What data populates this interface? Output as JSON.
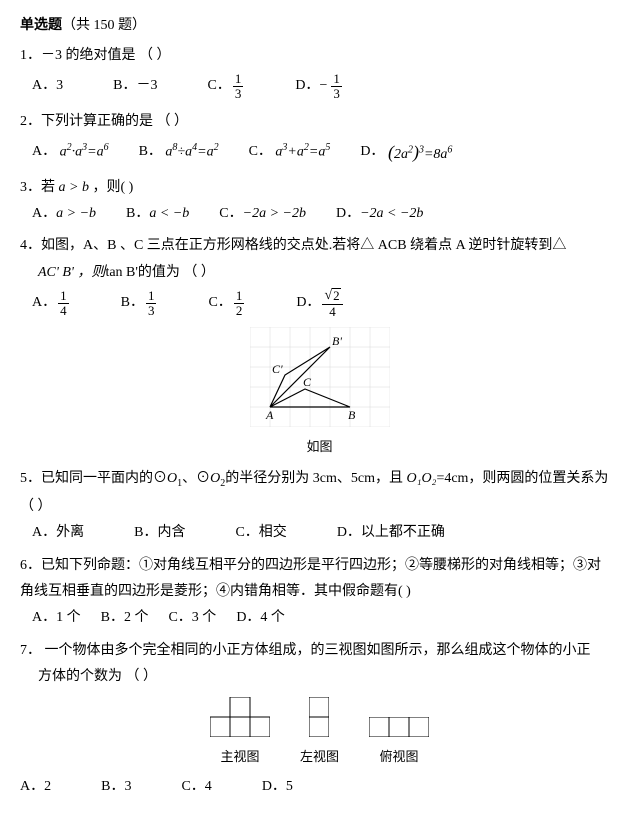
{
  "header": {
    "title_bold": "单选题",
    "title_rest": "（共 150 题）"
  },
  "q1": {
    "text": "1．－3 的绝对值是  （      ）",
    "optA_label": "A．",
    "optA_val": "3",
    "optB_label": "B．",
    "optB_val": "－3",
    "optC_label": "C．",
    "optC_num": "1",
    "optC_den": "3",
    "optD_label": "D．",
    "optD_neg": "−",
    "optD_num": "1",
    "optD_den": "3"
  },
  "q2": {
    "text": "2．下列计算正确的是  （      ）",
    "optA_label": "A．",
    "optB_label": "B．",
    "optC_label": "C．",
    "optD_label": "D．",
    "a": "a",
    "exp2": "2",
    "exp3": "3",
    "exp4": "4",
    "exp5": "5",
    "exp6": "6",
    "exp8": "8",
    "dot": "·",
    "div": "÷",
    "plus": "+",
    "eq": "=",
    "eight": "8",
    "lp": "(",
    "rp": ")",
    "two": "2"
  },
  "q3": {
    "text_pre": "3．若 ",
    "text_cond": "a > b",
    "text_post": " ，则(      )",
    "optA": "A．",
    "optA_val": "a > −b",
    "optB": "B．",
    "optB_val": "a < −b",
    "optC": "C．",
    "optC_val": "−2a > −2b",
    "optD": "D．",
    "optD_val": "−2a < −2b"
  },
  "q4": {
    "text1": "4．如图，A、B 、C 三点在正方形网格线的交点处.若将△ ACB 绕着点 A 逆时针旋转到△",
    "text2_pre": "AC' B' ，则",
    "text2_tan": "tan B'",
    "text2_post": "的值为  （      ）",
    "optA": "A．",
    "optA_num": "1",
    "optA_den": "4",
    "optB": "B．",
    "optB_num": "1",
    "optB_den": "3",
    "optC": "C．",
    "optC_num": "1",
    "optC_den": "2",
    "optD": "D．",
    "optD_sqrt": "2",
    "optD_den": "4",
    "caption": "如图",
    "labels": {
      "A": "A",
      "B": "B",
      "C": "C",
      "Bp": "B'",
      "Cp": "C'"
    },
    "grid_color": "#d8d8d8",
    "line_color": "#000000"
  },
  "q5": {
    "text1_pre": "5．已知同一平面内的⊙",
    "text1_o1": "O",
    "text1_sub1": "1",
    "text1_mid1": "、⊙",
    "text1_o2": "O",
    "text1_sub2": "2",
    "text1_mid2": "的半径分别为 3cm、5cm，且 ",
    "text1_oo": "O₁O₂",
    "text1_post": "=4cm，则两圆的位置关系为",
    "text2": "（      ）",
    "optA": "A．外离",
    "optB": "B．内含",
    "optC": "C．相交",
    "optD": "D．以上都不正确"
  },
  "q6": {
    "text1": "6．已知下列命题：①对角线互相平分的四边形是平行四边形；②等腰梯形的对角线相等；③对",
    "text2": "角线互相垂直的四边形是菱形；④内错角相等．其中假命题有(       )",
    "optA": "A．1 个",
    "optB": "B．2 个",
    "optC": "C．3 个",
    "optD": "D．4 个"
  },
  "q7": {
    "text1": "7． 一个物体由多个完全相同的小正方体组成，的三视图如图所示，那么组成这个物体的小正",
    "text2": "方体的个数为 （    ）",
    "view1_label": "主视图",
    "view2_label": "左视图",
    "view3_label": "俯视图",
    "optA": "A．2",
    "optB": "B．3",
    "optC": "C．4",
    "optD": "D．5",
    "box_stroke": "#000000",
    "box_fill": "#ffffff"
  }
}
